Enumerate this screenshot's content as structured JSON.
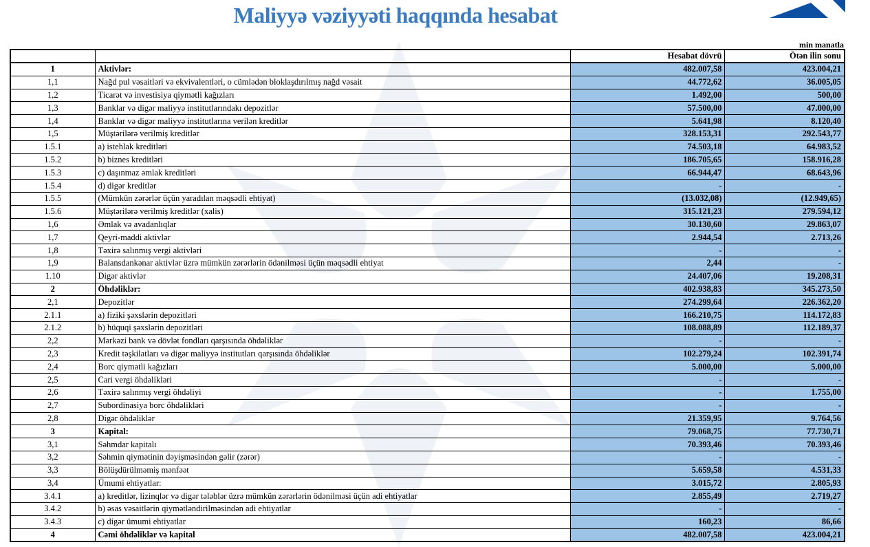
{
  "title": "Maliyyə vəziyyəti haqqında hesabat",
  "unit": "min manatla",
  "colors": {
    "title": "#3b7bc0",
    "value_cells": "#9dc3e6"
  },
  "columns": [
    "",
    "",
    "Hesabat dövrü",
    "Ötən ilin sonu"
  ],
  "rows": [
    {
      "num": "1",
      "label": "Aktivlər:",
      "current": "482.007,58",
      "previous": "423.004,21",
      "bold": true
    },
    {
      "num": "1,1",
      "label": "Nağd pul vəsaitləri və  ekvivalentləri, o cümlədən bloklaşdırılmış nağd vəsait",
      "current": "44.772,62",
      "previous": "36.005,05"
    },
    {
      "num": "1,2",
      "label": "Ticarət və investisiya qiymətli kağızları",
      "current": "1.492,00",
      "previous": "500,00"
    },
    {
      "num": "1,3",
      "label": "Banklar və digər maliyyə institutlarındakı depozitlər",
      "current": "57.500,00",
      "previous": "47.000,00"
    },
    {
      "num": "1,4",
      "label": "Banklar və digər maliyyə institutlarına verilən kreditlər",
      "current": "5.641,98",
      "previous": "8.120,40"
    },
    {
      "num": "1,5",
      "label": "Müştərilərə verilmiş kreditlər",
      "current": "328.153,31",
      "previous": "292.543,77"
    },
    {
      "num": "1.5.1",
      "label": "a) istehlak kreditləri",
      "current": "74.503,18",
      "previous": "64.983,52"
    },
    {
      "num": "1.5.2",
      "label": "b) biznes kreditləri",
      "current": "186.705,65",
      "previous": "158.916,28"
    },
    {
      "num": "1.5.3",
      "label": "c) daşınmaz əmlak kreditləri",
      "current": "66.944,47",
      "previous": "68.643,96"
    },
    {
      "num": "1.5.4",
      "label": "d) digər kreditlər",
      "current": "-",
      "previous": "-"
    },
    {
      "num": "1.5.5",
      "label": "(Mümkün zərərlər üçün yaradılan məqsədli ehtiyat)",
      "current": "(13.032,08)",
      "previous": "(12.949,65)"
    },
    {
      "num": "1.5.6",
      "label": "Müştərilərə verilmiş kreditlər (xalis)",
      "current": "315.121,23",
      "previous": "279.594,12"
    },
    {
      "num": "1,6",
      "label": "Əmlak və avadanlıqlar",
      "current": "30.130,60",
      "previous": "29.863,07"
    },
    {
      "num": "1,7",
      "label": "Qeyri-maddi aktivlər",
      "current": "2.944,54",
      "previous": "2.713,26"
    },
    {
      "num": "1,8",
      "label": "Təxirə salınmış vergi aktivləri",
      "current": "-",
      "previous": "-"
    },
    {
      "num": "1,9",
      "label": "Balansdankənar aktivlər üzrə mümkün zərərlərin ödənilməsi üçün məqsədli ehtiyat",
      "current": "2,44",
      "previous": "-"
    },
    {
      "num": "1.10",
      "label": "Digər aktivlər",
      "current": "24.407,06",
      "previous": "19.208,31"
    },
    {
      "num": "2",
      "label": "Öhdəliklər:",
      "current": "402.938,83",
      "previous": "345.273,50",
      "bold": true
    },
    {
      "num": "2,1",
      "label": "Depozitlər",
      "current": "274.299,64",
      "previous": "226.362,20"
    },
    {
      "num": "2.1.1",
      "label": "a) fiziki şəxslərin depozitləri",
      "current": "166.210,75",
      "previous": "114.172,83"
    },
    {
      "num": "2.1.2",
      "label": "b) hüquqi şəxslərin depozitləri",
      "current": "108.088,89",
      "previous": "112.189,37"
    },
    {
      "num": "2,2",
      "label": "Mərkəzi bank və dövlət fondları qarşısında öhdəliklər",
      "current": "-",
      "previous": "-"
    },
    {
      "num": "2,3",
      "label": "Kredit təşkilatları və digər maliyyə institutları qarşısında öhdəliklər",
      "current": "102.279,24",
      "previous": "102.391,74"
    },
    {
      "num": "2,4",
      "label": "Borc qiymətli kağızları",
      "current": "5.000,00",
      "previous": "5.000,00"
    },
    {
      "num": "2,5",
      "label": "Cari vergi öhdəlikləri",
      "current": "-",
      "previous": "-"
    },
    {
      "num": "2,6",
      "label": "Təxirə salınmış vergi öhdəliyi",
      "current": "-",
      "previous": "1.755,00"
    },
    {
      "num": "2,7",
      "label": "Subordinasiya borc öhdəlikləri",
      "current": "-",
      "previous": "-"
    },
    {
      "num": "2,8",
      "label": "Digər öhdəliklər",
      "current": "21.359,95",
      "previous": "9.764,56"
    },
    {
      "num": "3",
      "label": "Kapital:",
      "current": "79.068,75",
      "previous": "77.730,71",
      "bold": true
    },
    {
      "num": "3,1",
      "label": "Səhmdar kapitalı",
      "current": "70.393,46",
      "previous": "70.393,46"
    },
    {
      "num": "3,2",
      "label": "Səhmin qiymətinin dəyişməsindən gəlir (zərər)",
      "current": "-",
      "previous": "-"
    },
    {
      "num": "3,3",
      "label": "Bölüşdürülməmiş mənfəət",
      "current": "5.659,58",
      "previous": "4.531,33"
    },
    {
      "num": "3,4",
      "label": "Ümumi ehtiyatlar:",
      "current": "3.015,72",
      "previous": "2.805,93"
    },
    {
      "num": "3.4.1",
      "label": "a) kreditlər, lizinqlər və digər tələblər üzrə mümkün zərərlərin ödənilməsi üçün adi ehtiyatlar",
      "current": "2.855,49",
      "previous": "2.719,27"
    },
    {
      "num": "3.4.2",
      "label": "b) əsas vəsaitlərin qiymətləndirilməsindən adi ehtiyatlar",
      "current": "-",
      "previous": "-"
    },
    {
      "num": "3.4.3",
      "label": "c) digər ümumi ehtiyatlar",
      "current": "160,23",
      "previous": "86,66"
    },
    {
      "num": "4",
      "label": "Cəmi öhdəliklər və kapital",
      "current": "482.007,58",
      "previous": "423.004,21",
      "bold": true
    }
  ]
}
